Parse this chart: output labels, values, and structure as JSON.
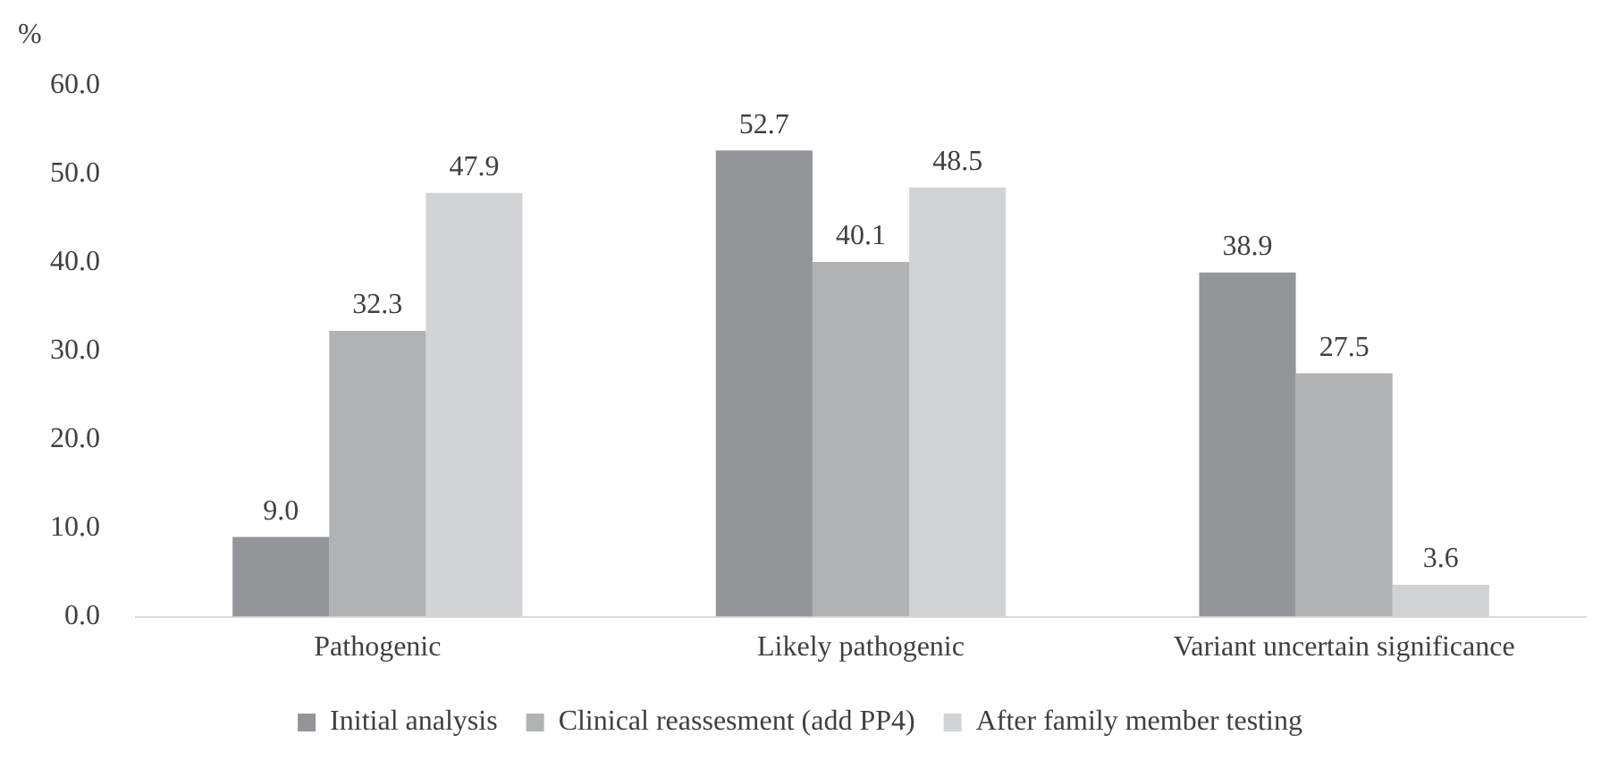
{
  "chart_data": {
    "type": "bar",
    "ylabel": "%",
    "categories": [
      "Pathogenic",
      "Likely pathogenic",
      "Variant uncertain significance"
    ],
    "series": [
      {
        "name": "Initial analysis",
        "color": "#939598",
        "values": [
          9.0,
          52.7,
          38.9
        ],
        "value_labels": [
          "9.0",
          "52.7",
          "38.9"
        ]
      },
      {
        "name": "Clinical reassesment (add PP4)",
        "color": "#b1b2b4",
        "values": [
          32.3,
          40.1,
          27.5
        ],
        "value_labels": [
          "32.3",
          "40.1",
          "27.5"
        ]
      },
      {
        "name": "After family member testing",
        "color": "#d2d3d5",
        "values": [
          47.9,
          48.5,
          3.6
        ],
        "value_labels": [
          "47.9",
          "48.5",
          "3.6"
        ]
      }
    ],
    "ylim": [
      0,
      60
    ],
    "yticks": [
      {
        "value": 0,
        "label": "0.0"
      },
      {
        "value": 10,
        "label": "10.0"
      },
      {
        "value": 20,
        "label": "20.0"
      },
      {
        "value": 30,
        "label": "30.0"
      },
      {
        "value": 40,
        "label": "40.0"
      },
      {
        "value": 50,
        "label": "50.0"
      },
      {
        "value": 60,
        "label": "60.0"
      }
    ],
    "grid": false,
    "legend": "bottom"
  }
}
